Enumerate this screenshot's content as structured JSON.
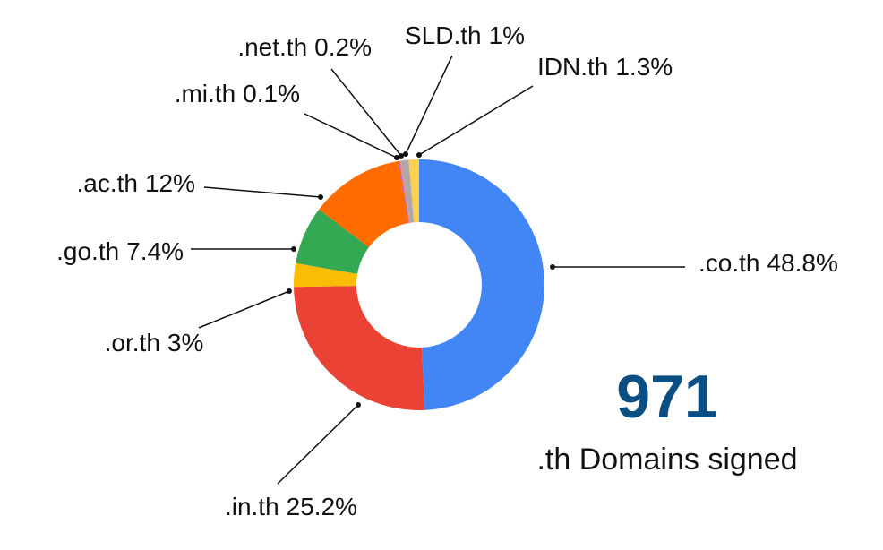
{
  "chart_data": {
    "type": "donut",
    "categories": [
      ".co.th",
      ".in.th",
      ".or.th",
      ".go.th",
      ".ac.th",
      ".mi.th",
      ".net.th",
      "SLD.th",
      "IDN.th"
    ],
    "values": [
      48.8,
      25.2,
      3,
      7.4,
      12,
      0.1,
      0.2,
      1,
      1.3
    ],
    "value_labels": [
      "48.8%",
      "25.2%",
      "3%",
      "7.4%",
      "12%",
      "0.1%",
      "0.2%",
      "1%",
      "1.3%"
    ],
    "colors": [
      "#4285f4",
      "#ea4335",
      "#fbbc04",
      "#34a853",
      "#ff6d01",
      "#a142f4",
      "#e8847c",
      "#b0a8a8",
      "#fcd04f"
    ],
    "annotations": [
      "971",
      ".th Domains signed"
    ]
  }
}
